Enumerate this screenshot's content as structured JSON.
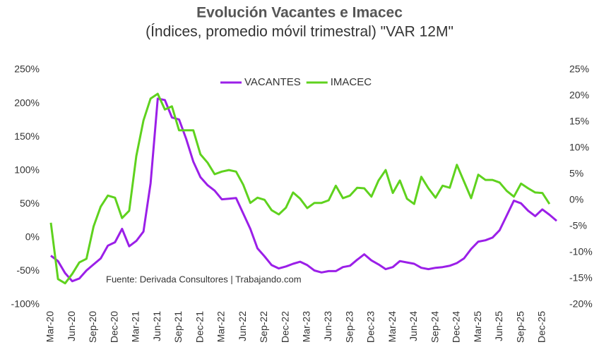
{
  "chart_data": {
    "type": "line",
    "title": "Evolución Vacantes e Imacec",
    "subtitle": "(Índices, promedio móvil trimestral) \"VAR 12M\"",
    "annotation": "Fuente: Derivada Consultores | Trabajando.com",
    "categories": [
      "Mar-20",
      null,
      null,
      "Jun-20",
      null,
      null,
      "Sep-20",
      null,
      null,
      "Dec-20",
      null,
      null,
      "Mar-21",
      null,
      null,
      "Jun-21",
      null,
      null,
      "Sep-21",
      null,
      null,
      "Dec-21",
      null,
      null,
      "Mar-22",
      null,
      null,
      "Jun-22",
      null,
      null,
      "Sep-22",
      null,
      null,
      "Dec-22",
      null,
      null,
      "Mar-23",
      null,
      null,
      "Jun-23",
      null,
      null,
      "Sep-23",
      null,
      null,
      "Dec-23",
      null,
      null,
      "Mar-24",
      null,
      null,
      "Jun-24",
      null,
      null,
      "Sep-24",
      null,
      null,
      "Dec-24",
      null,
      null,
      "Mar-25",
      null,
      null,
      "Jun-25",
      null,
      null,
      "Sep-25",
      null,
      null,
      "Dec-25",
      null,
      null
    ],
    "series": [
      {
        "name": "VACANTES",
        "color": "#9b1fe8",
        "axis": "y",
        "values": [
          -27,
          -35,
          -53,
          -65,
          -61,
          -49,
          -40,
          -31,
          -12,
          -7,
          13,
          -13,
          -5,
          9,
          81,
          207,
          205,
          179,
          176,
          147,
          113,
          90,
          78,
          70,
          57,
          58,
          59,
          36,
          13,
          -16,
          -28,
          -41,
          -46,
          -43,
          -39,
          -36,
          -41,
          -49,
          -52,
          -50,
          -50,
          -44,
          -42,
          -33,
          -25,
          -34,
          -40,
          -47,
          -44,
          -35,
          -37,
          -39,
          -45,
          -47,
          -45,
          -44,
          -42,
          -38,
          -31,
          -17,
          -6,
          -4,
          0,
          11,
          33,
          55,
          51,
          40,
          32,
          42,
          34,
          25
        ]
      },
      {
        "name": "IMACEC",
        "color": "#5fd21e",
        "axis": "y2",
        "values": [
          -4.3,
          -15.1,
          -15.9,
          -14.1,
          -11.9,
          -11.2,
          -5,
          -1.2,
          0.9,
          0.5,
          -3.4,
          -2,
          8.5,
          15.3,
          19.5,
          20.4,
          17.4,
          18,
          13.4,
          13.4,
          13.4,
          8.8,
          7.2,
          5,
          5.5,
          5.8,
          5.5,
          3,
          -0.5,
          0.5,
          0.1,
          -1.9,
          -2.7,
          -1.4,
          1.5,
          0.3,
          -1.5,
          -0.5,
          -0.5,
          0,
          2.8,
          0.4,
          0.9,
          2.4,
          2.3,
          0.7,
          3.8,
          5.8,
          1.4,
          3.8,
          0.3,
          -0.7,
          4.5,
          2.3,
          0.5,
          2.8,
          2.4,
          6.8,
          3.6,
          0.4,
          4.9,
          3.9,
          3.9,
          3.4,
          1.8,
          0.7,
          3.2,
          2.3,
          1.5,
          1.4,
          -0.7,
          null
        ]
      }
    ],
    "ylim": [
      -100,
      250
    ],
    "yticks": [
      {
        "value": -100,
        "label": "-100%"
      },
      {
        "value": -50,
        "label": "-50%"
      },
      {
        "value": 0,
        "label": "0%"
      },
      {
        "value": 50,
        "label": "50%"
      },
      {
        "value": 100,
        "label": "100%"
      },
      {
        "value": 150,
        "label": "150%"
      },
      {
        "value": 200,
        "label": "200%"
      },
      {
        "value": 250,
        "label": "250%"
      }
    ],
    "y2lim": [
      -20,
      25
    ],
    "y2ticks": [
      {
        "value": -20,
        "label": "-20%"
      },
      {
        "value": -15,
        "label": "-15%"
      },
      {
        "value": -10,
        "label": "-10%"
      },
      {
        "value": -5,
        "label": "-5%"
      },
      {
        "value": 0,
        "label": "0%"
      },
      {
        "value": 5,
        "label": "5%"
      },
      {
        "value": 10,
        "label": "10%"
      },
      {
        "value": 15,
        "label": "15%"
      },
      {
        "value": 20,
        "label": "20%"
      },
      {
        "value": 25,
        "label": "25%"
      }
    ],
    "grid": false,
    "legend": "top"
  }
}
